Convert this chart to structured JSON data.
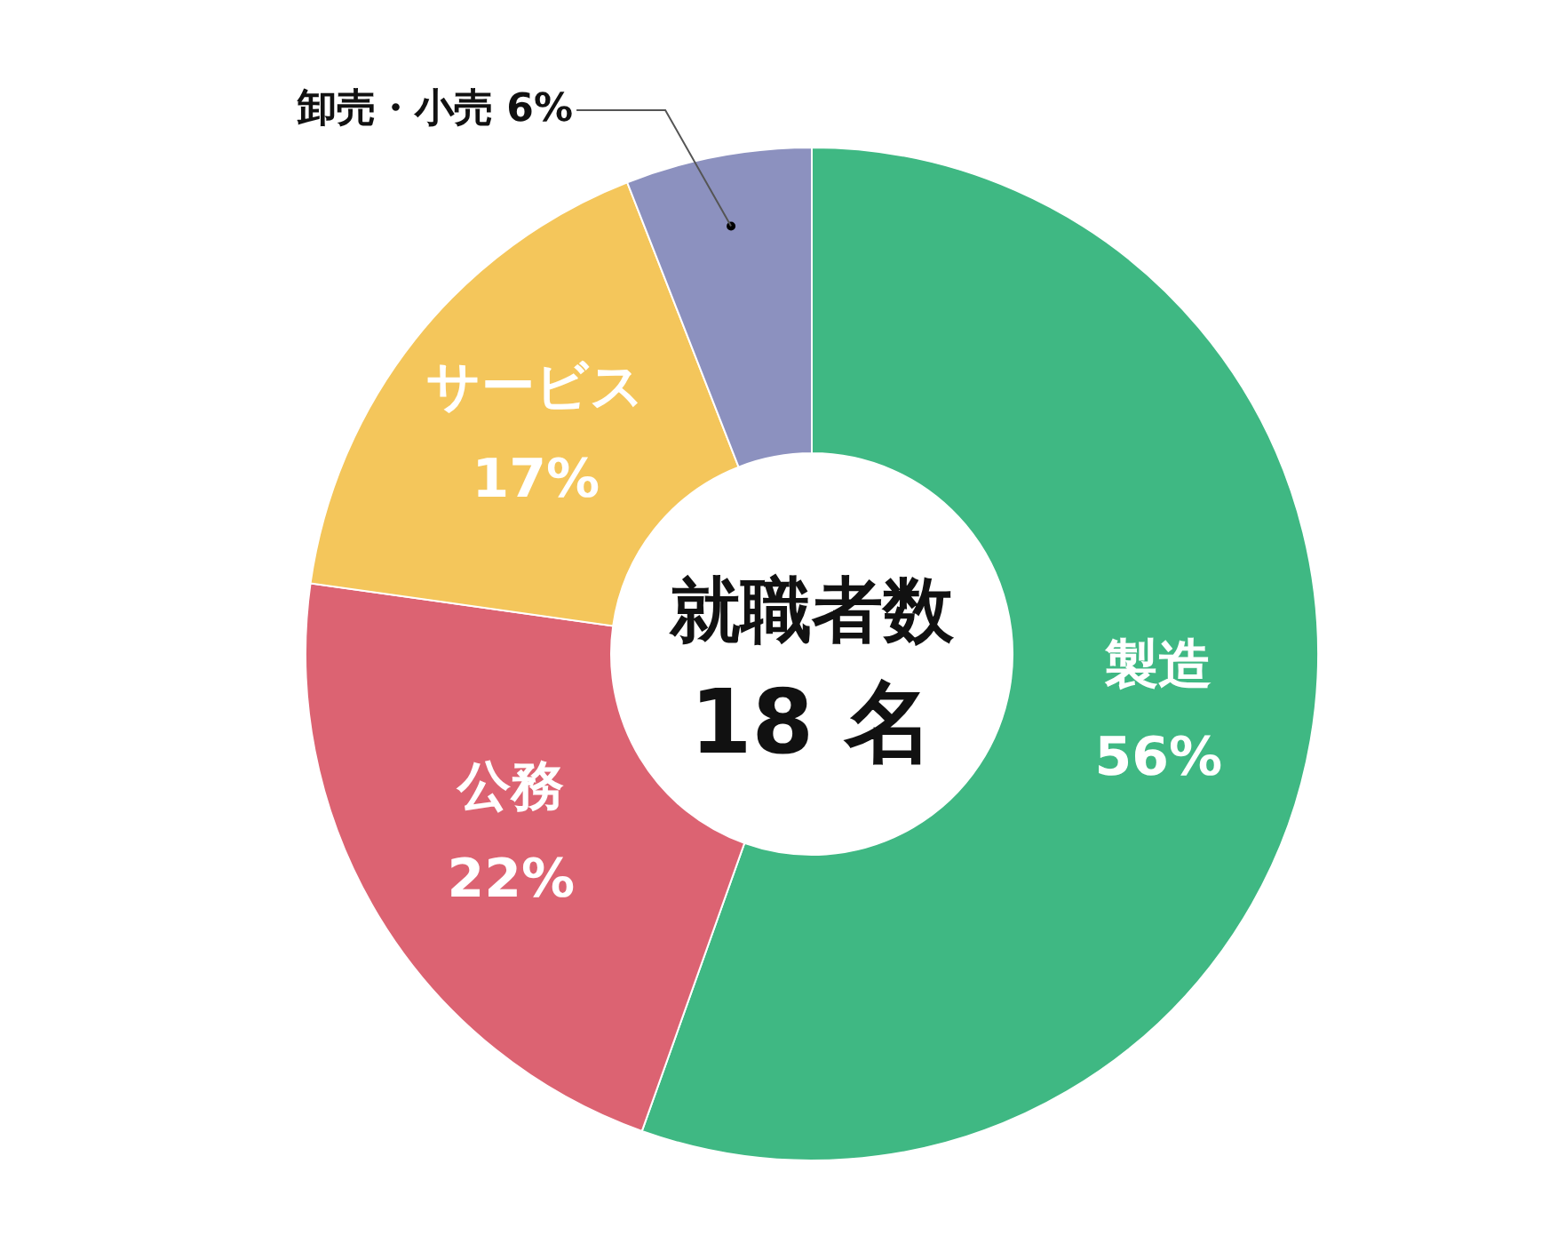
{
  "chart_data": {
    "type": "donut",
    "title": "就職者数",
    "subtitle": "18 名",
    "categories": [
      "製造",
      "公務",
      "サービス",
      "卸売・小売"
    ],
    "values": [
      56,
      22,
      17,
      6
    ],
    "value_labels": [
      "56%",
      "22%",
      "17%",
      "6%"
    ],
    "colors": [
      "#3fb883",
      "#dc6372",
      "#f4c65b",
      "#8c91bf"
    ],
    "legend": false
  }
}
